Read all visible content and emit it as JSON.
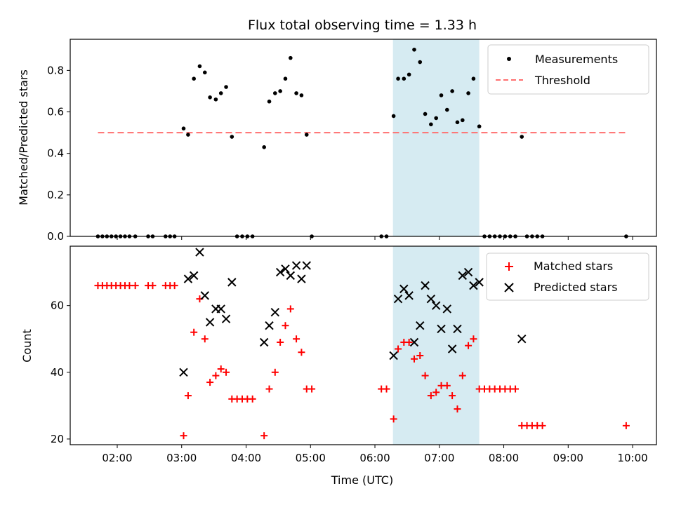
{
  "chart_data": {
    "title": "Flux total observing time = 1.33 h",
    "xlabel": "Time (UTC)",
    "x_unit": "hours UTC",
    "x_range": [
      1.27,
      10.37
    ],
    "x_ticks": [
      {
        "value": 2,
        "label": "02:00"
      },
      {
        "value": 3,
        "label": "03:00"
      },
      {
        "value": 4,
        "label": "04:00"
      },
      {
        "value": 5,
        "label": "05:00"
      },
      {
        "value": 6,
        "label": "06:00"
      },
      {
        "value": 7,
        "label": "07:00"
      },
      {
        "value": 8,
        "label": "08:00"
      },
      {
        "value": 9,
        "label": "09:00"
      },
      {
        "value": 10,
        "label": "10:00"
      }
    ],
    "shaded_span": {
      "x0": 6.28,
      "x1": 7.62,
      "color": "#add8e6"
    },
    "top": {
      "type": "scatter",
      "ylabel": "Matched/Predicted stars",
      "ylim": [
        0,
        0.95
      ],
      "y_ticks": [
        "0.0",
        "0.2",
        "0.4",
        "0.6",
        "0.8"
      ],
      "threshold": {
        "name": "Threshold",
        "y": 0.5,
        "x0": 1.7,
        "x1": 9.9,
        "color": "#ff6f6f"
      },
      "series": [
        {
          "name": "Measurements",
          "color": "#000000",
          "x": [
            1.7,
            1.77,
            1.84,
            1.91,
            1.98,
            2.05,
            2.12,
            2.19,
            2.28,
            2.48,
            2.55,
            2.75,
            2.82,
            2.89,
            3.03,
            3.1,
            3.19,
            3.28,
            3.36,
            3.44,
            3.53,
            3.61,
            3.69,
            3.78,
            3.86,
            3.94,
            4.02,
            4.1,
            4.28,
            4.36,
            4.45,
            4.53,
            4.61,
            4.69,
            4.78,
            4.86,
            4.94,
            5.02,
            6.1,
            6.18,
            6.29,
            6.36,
            6.45,
            6.53,
            6.61,
            6.7,
            6.78,
            6.87,
            6.95,
            7.03,
            7.12,
            7.2,
            7.28,
            7.36,
            7.45,
            7.53,
            7.62,
            7.7,
            7.78,
            7.86,
            7.94,
            8.02,
            8.1,
            8.18,
            8.28,
            8.36,
            8.44,
            8.52,
            8.6,
            9.9
          ],
          "y": [
            0,
            0,
            0,
            0,
            0,
            0,
            0,
            0,
            0,
            0,
            0,
            0,
            0,
            0,
            0.52,
            0.49,
            0.76,
            0.82,
            0.79,
            0.67,
            0.66,
            0.69,
            0.72,
            0.48,
            0,
            0,
            0,
            0,
            0.43,
            0.65,
            0.69,
            0.7,
            0.76,
            0.86,
            0.69,
            0.68,
            0.49,
            0,
            0,
            0,
            0.58,
            0.76,
            0.76,
            0.78,
            0.9,
            0.84,
            0.59,
            0.54,
            0.57,
            0.68,
            0.61,
            0.7,
            0.55,
            0.56,
            0.69,
            0.76,
            0.53,
            0,
            0,
            0,
            0,
            0,
            0,
            0,
            0.48,
            0,
            0,
            0,
            0,
            0
          ]
        }
      ],
      "legend": {
        "position": "upper right"
      }
    },
    "bottom": {
      "type": "scatter",
      "ylabel": "Count",
      "ylim": [
        18.3,
        77.8
      ],
      "y_ticks": [
        "20",
        "40",
        "60"
      ],
      "series": [
        {
          "name": "Matched stars",
          "marker": "plus",
          "color": "#ff0000",
          "x": [
            1.7,
            1.77,
            1.84,
            1.91,
            1.98,
            2.05,
            2.12,
            2.19,
            2.28,
            2.48,
            2.55,
            2.75,
            2.82,
            2.89,
            3.03,
            3.1,
            3.19,
            3.28,
            3.36,
            3.44,
            3.53,
            3.61,
            3.69,
            3.78,
            3.86,
            3.94,
            4.02,
            4.1,
            4.28,
            4.36,
            4.45,
            4.53,
            4.61,
            4.69,
            4.78,
            4.86,
            4.94,
            5.02,
            6.1,
            6.18,
            6.29,
            6.36,
            6.45,
            6.53,
            6.61,
            6.7,
            6.78,
            6.87,
            6.95,
            7.03,
            7.12,
            7.2,
            7.28,
            7.36,
            7.45,
            7.53,
            7.62,
            7.7,
            7.78,
            7.86,
            7.94,
            8.02,
            8.1,
            8.18,
            8.28,
            8.36,
            8.44,
            8.52,
            8.6,
            9.9
          ],
          "y": [
            66,
            66,
            66,
            66,
            66,
            66,
            66,
            66,
            66,
            66,
            66,
            66,
            66,
            66,
            21,
            33,
            52,
            62,
            50,
            37,
            39,
            41,
            40,
            32,
            32,
            32,
            32,
            32,
            21,
            35,
            40,
            49,
            54,
            59,
            50,
            46,
            35,
            35,
            35,
            35,
            26,
            47,
            49,
            49,
            44,
            45,
            39,
            33,
            34,
            36,
            36,
            33,
            29,
            39,
            48,
            50,
            35,
            35,
            35,
            35,
            35,
            35,
            35,
            35,
            24,
            24,
            24,
            24,
            24,
            24
          ]
        },
        {
          "name": "Predicted stars",
          "marker": "x",
          "color": "#000000",
          "x": [
            3.03,
            3.1,
            3.19,
            3.28,
            3.36,
            3.44,
            3.53,
            3.61,
            3.69,
            3.78,
            4.28,
            4.36,
            4.45,
            4.53,
            4.61,
            4.69,
            4.78,
            4.86,
            4.94,
            6.29,
            6.36,
            6.45,
            6.53,
            6.61,
            6.7,
            6.78,
            6.87,
            6.95,
            7.03,
            7.12,
            7.2,
            7.28,
            7.36,
            7.45,
            7.53,
            7.62,
            8.28
          ],
          "y": [
            40,
            68,
            69,
            76,
            63,
            55,
            59,
            59,
            56,
            67,
            49,
            54,
            58,
            70,
            71,
            69,
            72,
            68,
            72,
            45,
            62,
            65,
            63,
            49,
            54,
            66,
            62,
            60,
            53,
            59,
            47,
            53,
            69,
            70,
            66,
            67,
            50
          ]
        }
      ],
      "legend": {
        "position": "upper right"
      }
    }
  }
}
